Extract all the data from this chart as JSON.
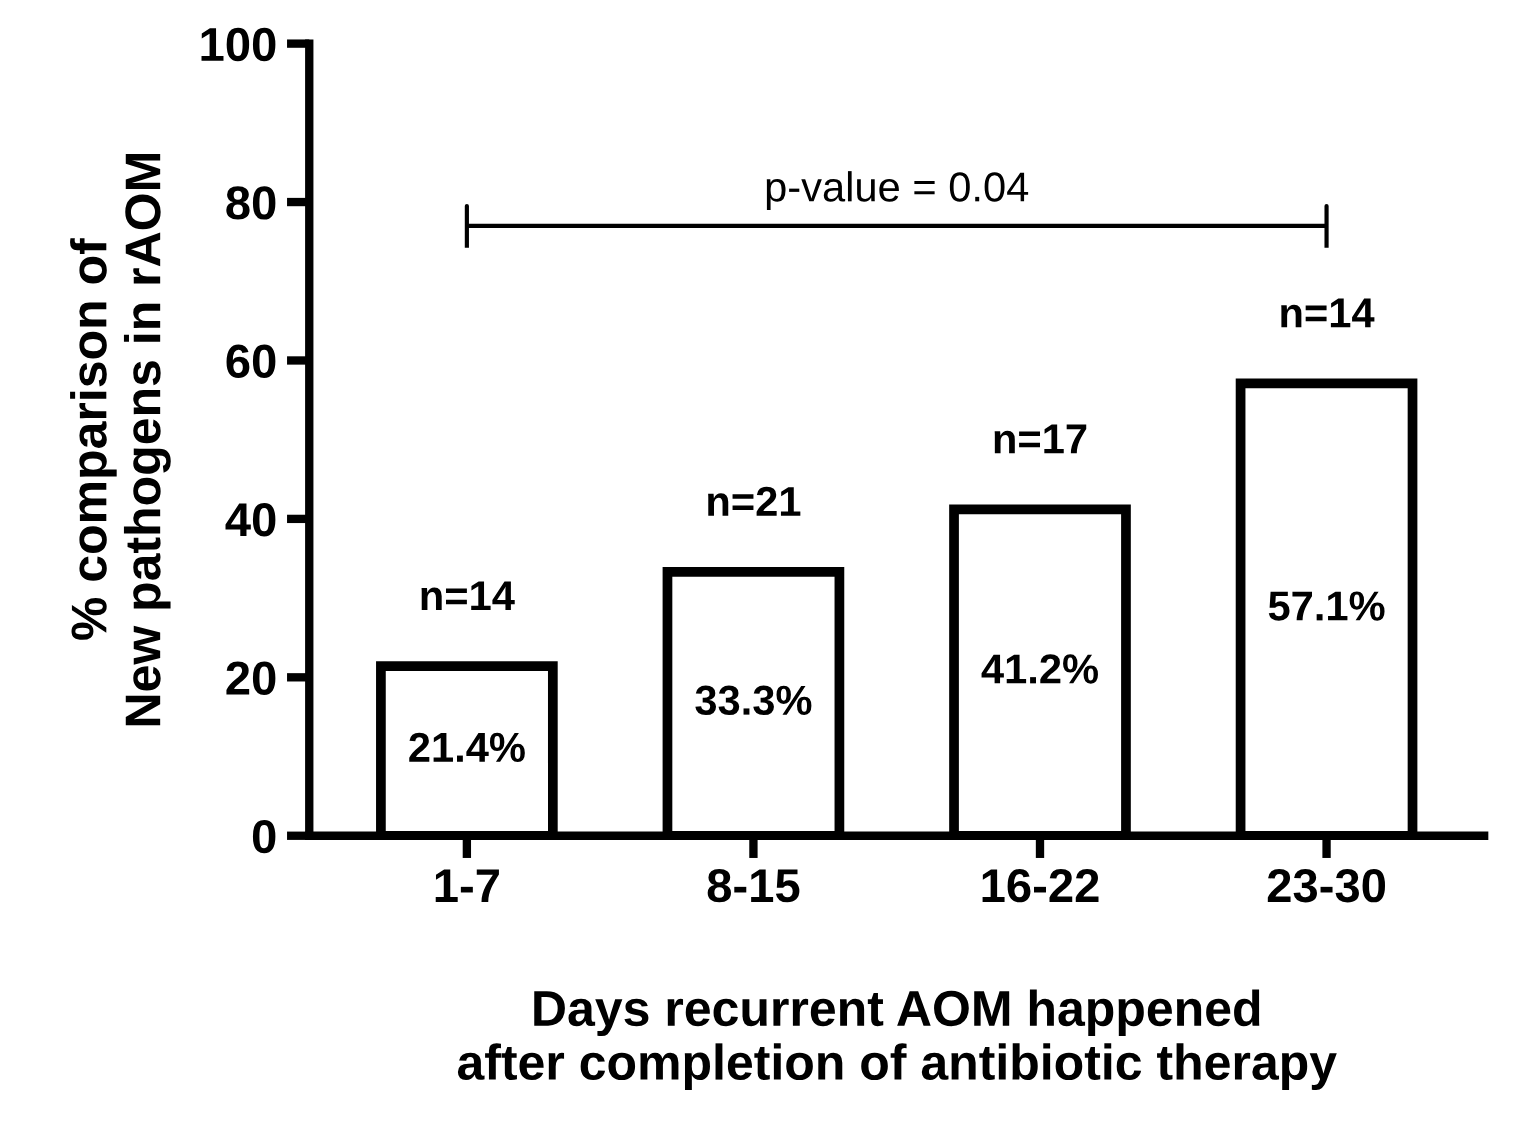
{
  "chart_data": {
    "type": "bar",
    "categories": [
      "1-7",
      "8-15",
      "16-22",
      "23-30"
    ],
    "values": [
      21.4,
      33.3,
      41.2,
      57.1
    ],
    "value_labels": [
      "21.4%",
      "33.3%",
      "41.2%",
      "57.1%"
    ],
    "color": "#ffffff",
    "xlabel": "Days recurrent AOM happened\nafter completion of antibiotic therapy",
    "ylabel": "% comparison of\nNew pathogens in rAOM",
    "ylim": [
      0,
      100
    ],
    "yticks": [
      0,
      20,
      40,
      60,
      80,
      100
    ],
    "grid": false,
    "legend": false,
    "annotations": [
      {
        "text": "n=14",
        "x": "1-7",
        "y": 21.4
      },
      {
        "text": "n=21",
        "x": "8-15",
        "y": 33.3
      },
      {
        "text": "n=17",
        "x": "16-22",
        "y": 41.2
      },
      {
        "text": "n=14",
        "x": "23-30",
        "y": 57.1
      },
      "p-value = 0.04"
    ]
  }
}
